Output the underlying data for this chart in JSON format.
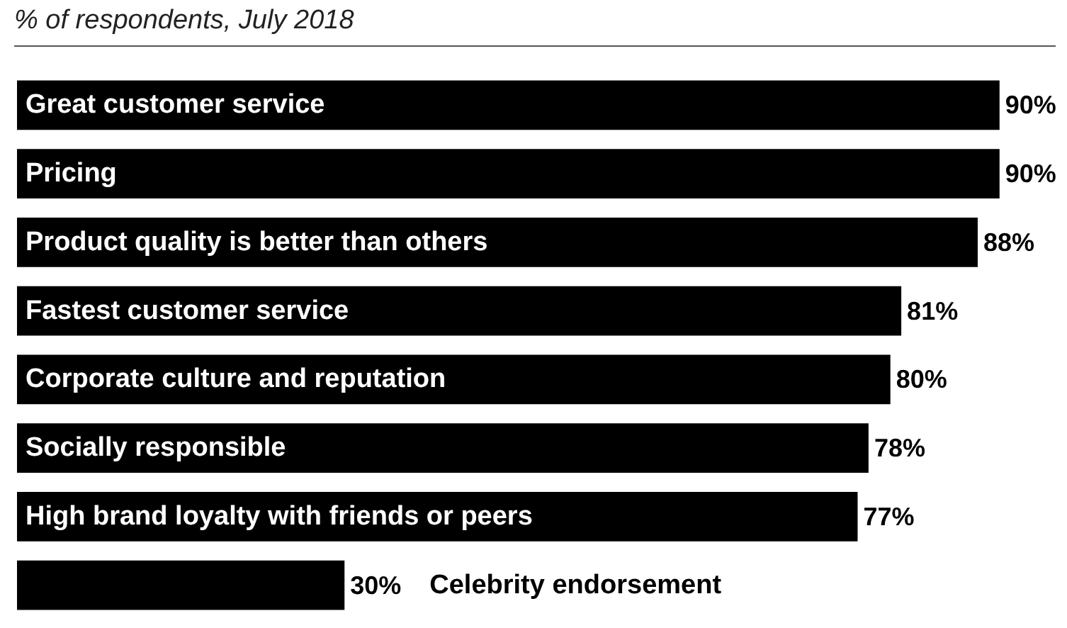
{
  "chart_data": {
    "type": "bar",
    "orientation": "horizontal",
    "title": "% of respondents, July 2018",
    "categories": [
      "Great customer service",
      "Pricing",
      "Product quality is better than others",
      "Fastest customer service",
      "Corporate culture and reputation",
      "Socially responsible",
      "High brand loyalty with friends or peers",
      "Celebrity endorsement"
    ],
    "values": [
      90,
      90,
      88,
      81,
      80,
      78,
      77,
      30
    ],
    "value_labels": [
      "90%",
      "90%",
      "88%",
      "81%",
      "80%",
      "78%",
      "77%",
      "30%"
    ],
    "color": "#000000"
  }
}
